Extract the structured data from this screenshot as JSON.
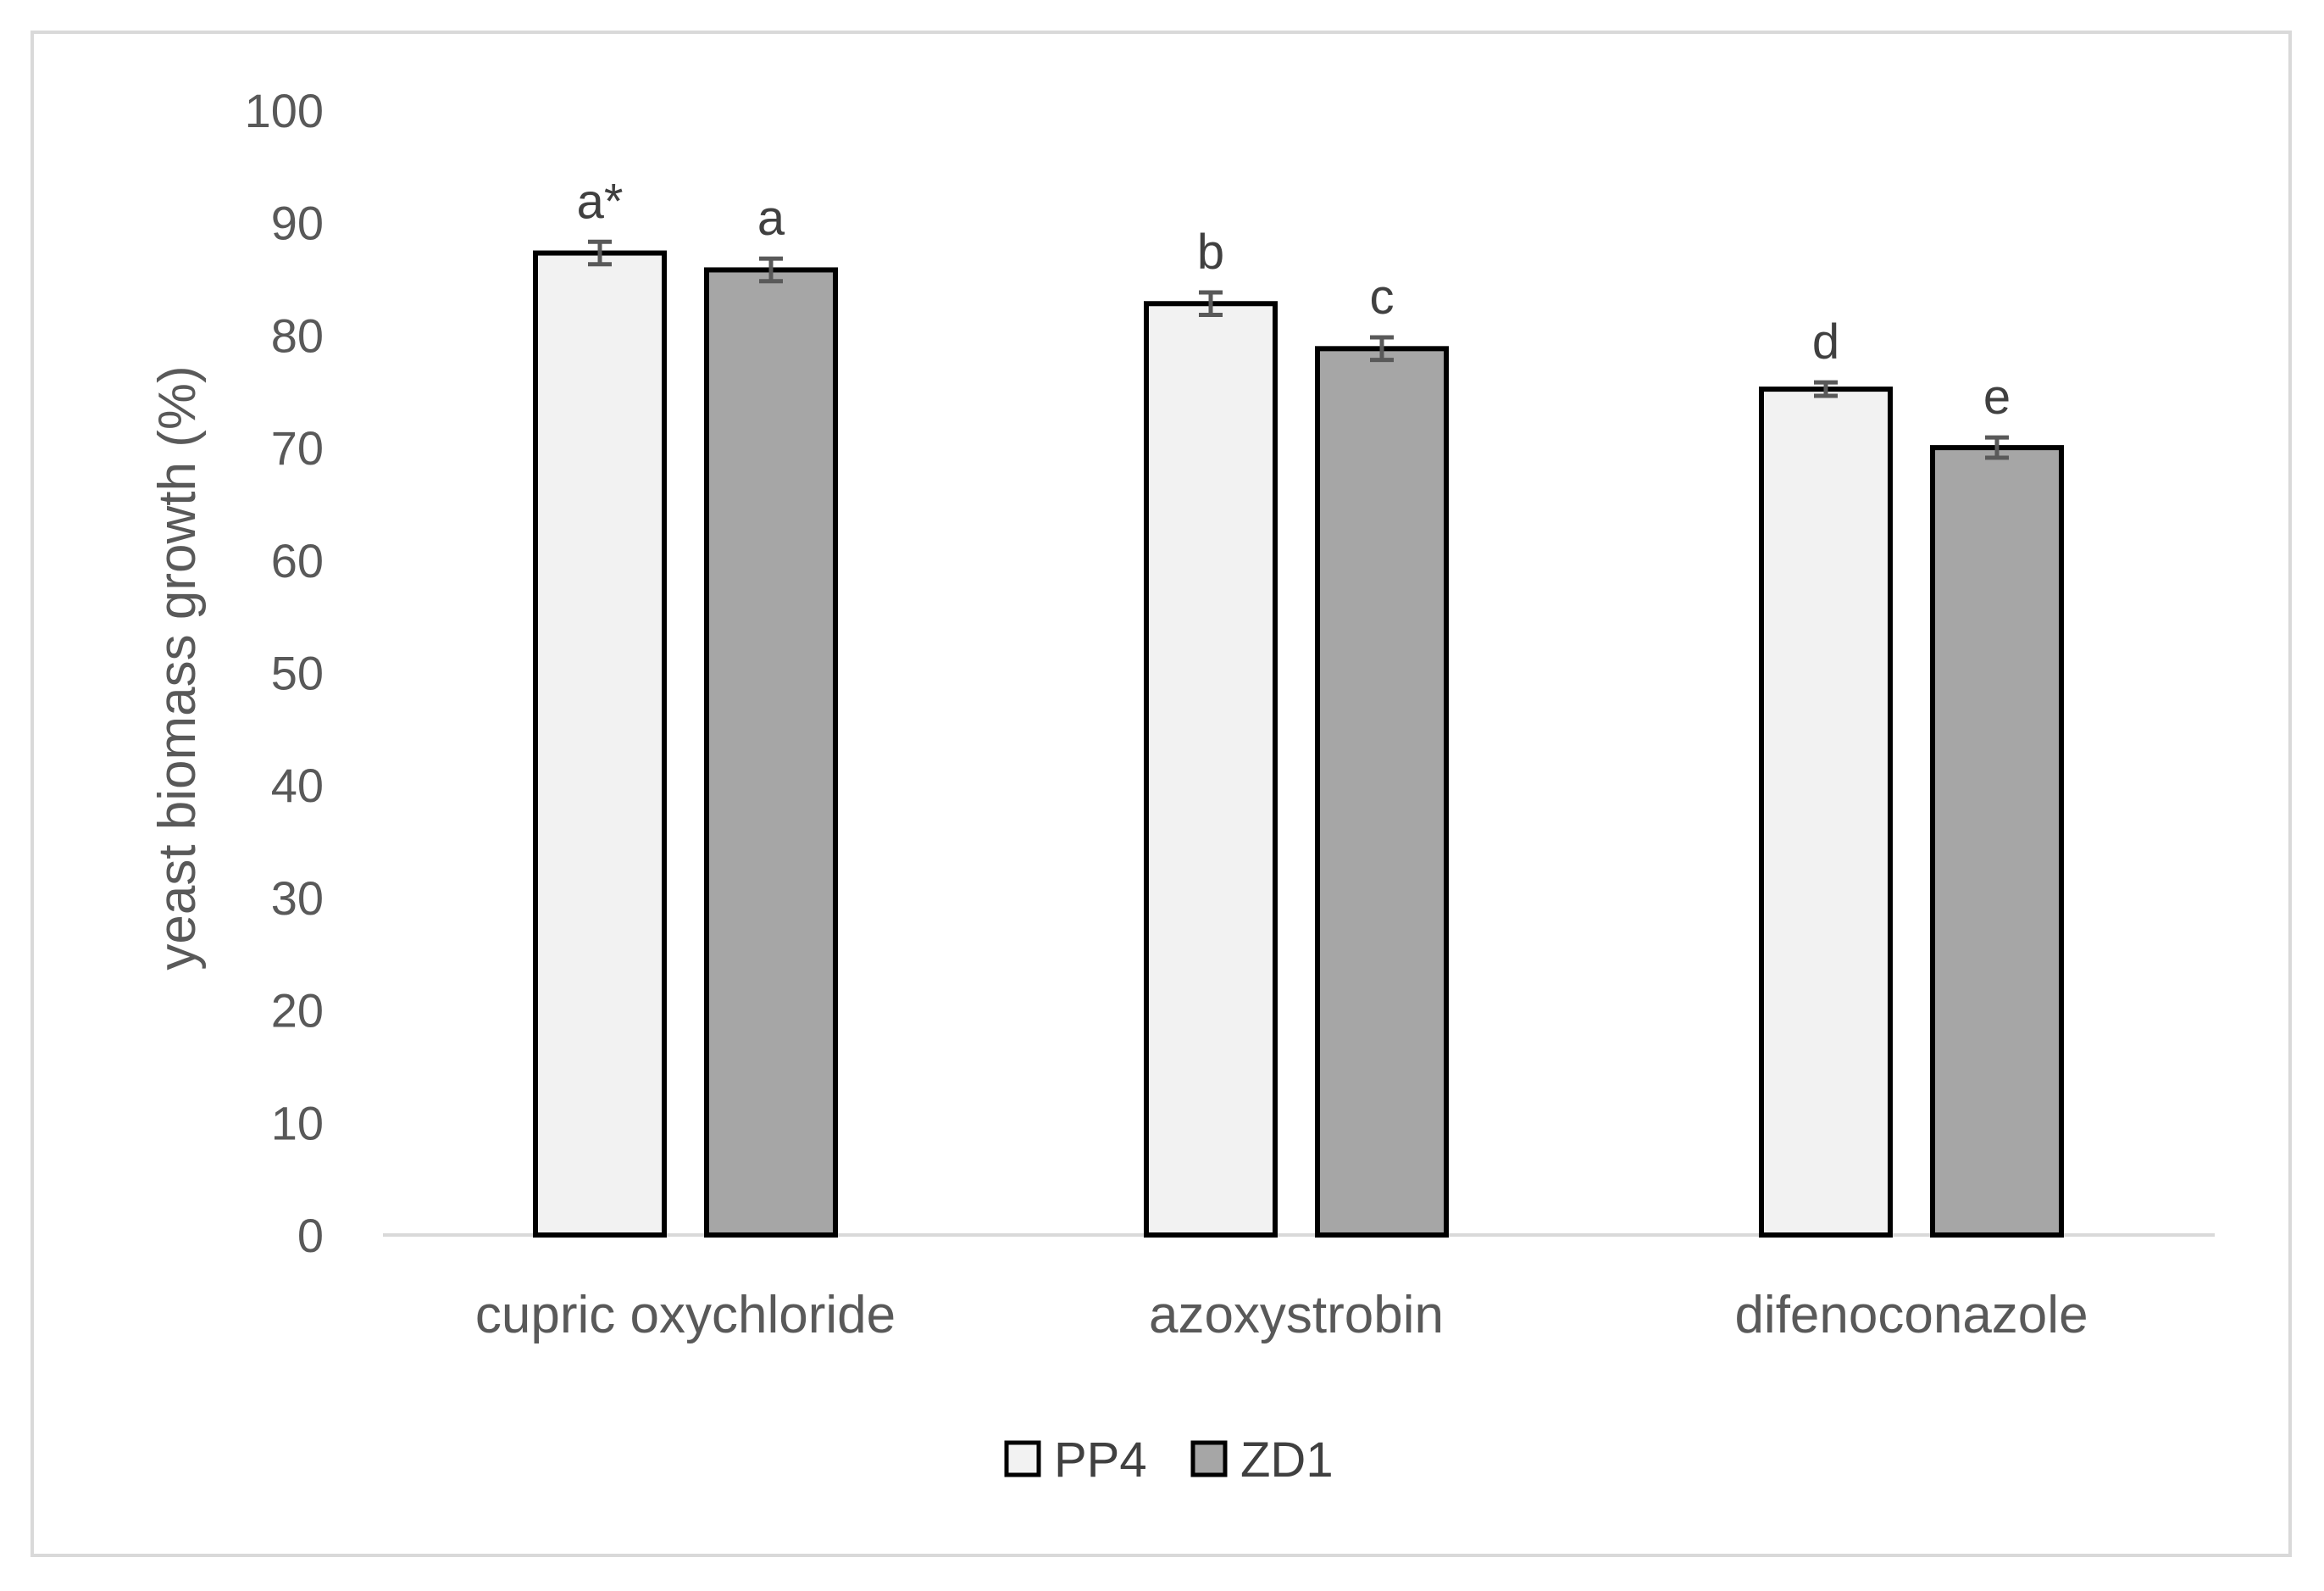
{
  "chart_data": {
    "type": "bar",
    "title": "",
    "xlabel": "",
    "ylabel": "yeast biomass growth (%)",
    "ylim": [
      0,
      100
    ],
    "yticks": [
      0,
      10,
      20,
      30,
      40,
      50,
      60,
      70,
      80,
      90,
      100
    ],
    "grid": false,
    "legend_position": "bottom",
    "categories": [
      "cupric oxychloride",
      "azoxystrobin",
      "difenoconazole"
    ],
    "series": [
      {
        "name": "PP4",
        "color": "#f2f2f2",
        "values": [
          87.3,
          82.8,
          75.2
        ],
        "errors": [
          1.0,
          1.0,
          0.6
        ],
        "labels": [
          "a*",
          "b",
          "d"
        ]
      },
      {
        "name": "ZD1",
        "color": "#a6a6a6",
        "values": [
          85.8,
          78.8,
          70.0
        ],
        "errors": [
          1.0,
          1.0,
          0.9
        ],
        "labels": [
          "a",
          "c",
          "e"
        ]
      }
    ]
  }
}
